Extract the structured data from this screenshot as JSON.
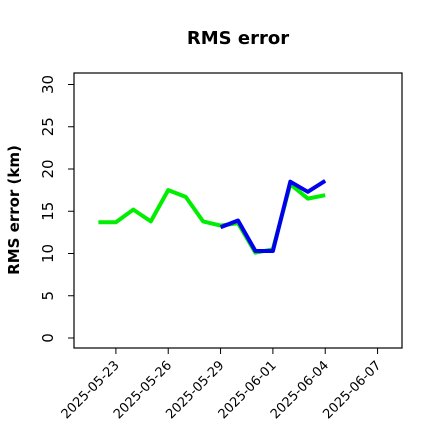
{
  "chart_data": {
    "type": "line",
    "title": "RMS error",
    "xlabel": "",
    "ylabel": "RMS error (km)",
    "ylim": [
      0,
      31
    ],
    "yticks": [
      0,
      5,
      10,
      15,
      20,
      25,
      30
    ],
    "xlim": [
      "2025-05-21",
      "2025-06-08"
    ],
    "xticks": [
      "2025-05-23",
      "2025-05-26",
      "2025-05-29",
      "2025-06-01",
      "2025-06-04",
      "2025-06-07"
    ],
    "highlight_tick": "2025-05-29",
    "grid": false,
    "legend": "none",
    "series": [
      {
        "color": "#00ee00",
        "x": [
          "2025-05-22",
          "2025-05-23",
          "2025-05-24",
          "2025-05-25",
          "2025-05-26",
          "2025-05-27",
          "2025-05-28",
          "2025-05-29",
          "2025-05-30",
          "2025-05-31",
          "2025-06-01",
          "2025-06-02",
          "2025-06-03",
          "2025-06-04"
        ],
        "values": [
          13.7,
          13.7,
          15.2,
          13.8,
          17.5,
          16.7,
          13.8,
          13.3,
          13.6,
          10.1,
          10.5,
          18.2,
          16.5,
          16.9
        ]
      },
      {
        "color": "#0000ee",
        "x": [
          "2025-05-29",
          "2025-05-30",
          "2025-05-31",
          "2025-06-01",
          "2025-06-02",
          "2025-06-03",
          "2025-06-04"
        ],
        "values": [
          13.1,
          13.9,
          10.3,
          10.3,
          18.5,
          17.3,
          18.6
        ]
      }
    ],
    "colors": {
      "tick_text": "#000000",
      "highlight_text": "#228b22"
    }
  }
}
